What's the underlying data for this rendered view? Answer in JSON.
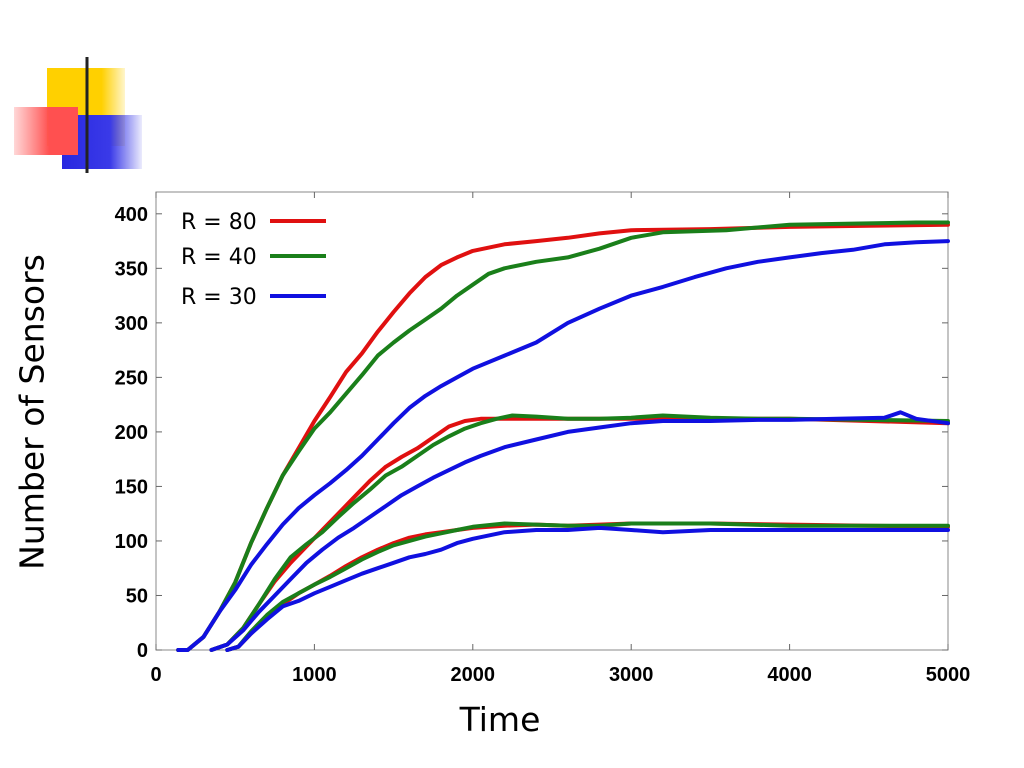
{
  "decoration": {
    "colors": {
      "yellow": "#FFD000",
      "red": "#FF6060",
      "blue": "#2828E0",
      "line": "#222222"
    }
  },
  "chart_data": {
    "type": "line",
    "title": "",
    "xlabel": "Time",
    "ylabel": "Number of Sensors",
    "xlim": [
      0,
      5000
    ],
    "ylim": [
      0,
      420
    ],
    "xticks": [
      0,
      1000,
      2000,
      3000,
      4000,
      5000
    ],
    "yticks": [
      0,
      50,
      100,
      150,
      200,
      250,
      300,
      350,
      400
    ],
    "grid": false,
    "legend": "top-left",
    "legend_entries": [
      {
        "label": "R = 80",
        "color": "#E01010"
      },
      {
        "label": "R = 40",
        "color": "#1A7F1A"
      },
      {
        "label": "R = 30",
        "color": "#1010E0"
      }
    ],
    "series": [
      {
        "name": "R = 80",
        "color": "#E01010",
        "x": [
          140,
          200,
          300,
          400,
          500,
          600,
          700,
          800,
          900,
          1000,
          1100,
          1200,
          1300,
          1400,
          1500,
          1600,
          1700,
          1800,
          1900,
          2000,
          2200,
          2400,
          2600,
          2800,
          3000,
          3500,
          4000,
          4500,
          5000
        ],
        "y": [
          0,
          0,
          12,
          35,
          62,
          98,
          130,
          160,
          185,
          210,
          232,
          255,
          272,
          292,
          310,
          327,
          342,
          353,
          360,
          366,
          372,
          375,
          378,
          382,
          385,
          386,
          388,
          389,
          390
        ]
      },
      {
        "name": "R = 40",
        "color": "#1A7F1A",
        "x": [
          140,
          200,
          300,
          400,
          500,
          600,
          700,
          800,
          900,
          1000,
          1100,
          1200,
          1300,
          1400,
          1500,
          1600,
          1700,
          1800,
          1900,
          2000,
          2100,
          2200,
          2400,
          2600,
          2800,
          3000,
          3200,
          3600,
          4000,
          4400,
          4800,
          5000
        ],
        "y": [
          0,
          0,
          12,
          35,
          62,
          98,
          130,
          160,
          182,
          203,
          218,
          235,
          252,
          270,
          282,
          293,
          303,
          313,
          325,
          335,
          345,
          350,
          356,
          360,
          368,
          378,
          383,
          385,
          390,
          391,
          392,
          392
        ]
      },
      {
        "name": "R = 30",
        "color": "#1010E0",
        "x": [
          140,
          200,
          300,
          400,
          500,
          600,
          700,
          800,
          900,
          1000,
          1100,
          1200,
          1300,
          1400,
          1500,
          1600,
          1700,
          1800,
          1900,
          2000,
          2200,
          2400,
          2600,
          2800,
          3000,
          3200,
          3400,
          3600,
          3800,
          4000,
          4200,
          4400,
          4600,
          4800,
          5000
        ],
        "y": [
          0,
          0,
          12,
          35,
          55,
          78,
          97,
          115,
          130,
          142,
          153,
          165,
          178,
          193,
          208,
          222,
          233,
          242,
          250,
          258,
          270,
          282,
          300,
          313,
          325,
          333,
          342,
          350,
          356,
          360,
          364,
          367,
          372,
          374,
          375
        ]
      },
      {
        "name": "R = 80",
        "color": "#E01010",
        "x": [
          350,
          450,
          550,
          650,
          750,
          850,
          950,
          1050,
          1150,
          1250,
          1350,
          1450,
          1550,
          1650,
          1750,
          1850,
          1950,
          2050,
          2200,
          2400,
          2600,
          2800,
          3000,
          3200,
          3500,
          3800,
          4000,
          4500,
          5000
        ],
        "y": [
          0,
          5,
          20,
          42,
          63,
          80,
          95,
          110,
          125,
          140,
          155,
          168,
          177,
          185,
          195,
          205,
          210,
          212,
          212,
          212,
          212,
          212,
          212,
          212,
          212,
          212,
          212,
          210,
          208
        ]
      },
      {
        "name": "R = 40",
        "color": "#1A7F1A",
        "x": [
          350,
          450,
          550,
          650,
          750,
          850,
          950,
          1050,
          1150,
          1250,
          1350,
          1450,
          1550,
          1650,
          1750,
          1850,
          1950,
          2050,
          2150,
          2250,
          2400,
          2600,
          2800,
          3000,
          3200,
          3500,
          3800,
          4000,
          4500,
          5000
        ],
        "y": [
          0,
          5,
          20,
          42,
          65,
          85,
          97,
          108,
          122,
          135,
          147,
          160,
          168,
          178,
          188,
          196,
          203,
          208,
          212,
          215,
          214,
          212,
          212,
          213,
          215,
          213,
          212,
          212,
          211,
          210
        ]
      },
      {
        "name": "R = 30",
        "color": "#1010E0",
        "x": [
          350,
          450,
          550,
          650,
          750,
          850,
          950,
          1050,
          1150,
          1250,
          1350,
          1450,
          1550,
          1650,
          1750,
          1850,
          1950,
          2050,
          2200,
          2400,
          2600,
          2800,
          3000,
          3200,
          3500,
          3800,
          4000,
          4300,
          4600,
          4700,
          4800,
          5000
        ],
        "y": [
          0,
          5,
          18,
          35,
          50,
          65,
          80,
          92,
          103,
          112,
          122,
          132,
          142,
          150,
          158,
          165,
          172,
          178,
          186,
          193,
          200,
          204,
          208,
          210,
          210,
          211,
          211,
          212,
          213,
          218,
          212,
          208
        ]
      },
      {
        "name": "R = 80",
        "color": "#E01010",
        "x": [
          450,
          520,
          600,
          700,
          800,
          900,
          1000,
          1100,
          1200,
          1300,
          1400,
          1500,
          1600,
          1700,
          1800,
          1900,
          2000,
          2200,
          2400,
          2600,
          2800,
          3000,
          3500,
          4000,
          4500,
          5000
        ],
        "y": [
          0,
          3,
          15,
          30,
          42,
          52,
          60,
          68,
          77,
          85,
          92,
          98,
          103,
          106,
          108,
          110,
          112,
          114,
          115,
          114,
          115,
          116,
          116,
          115,
          114,
          113
        ]
      },
      {
        "name": "R = 40",
        "color": "#1A7F1A",
        "x": [
          450,
          520,
          600,
          700,
          800,
          900,
          1000,
          1100,
          1200,
          1300,
          1400,
          1500,
          1600,
          1700,
          1800,
          1900,
          2000,
          2200,
          2400,
          2600,
          2800,
          3000,
          3500,
          4000,
          4500,
          5000
        ],
        "y": [
          0,
          3,
          17,
          32,
          44,
          52,
          60,
          67,
          75,
          83,
          90,
          96,
          100,
          104,
          107,
          110,
          113,
          116,
          115,
          114,
          114,
          116,
          116,
          114,
          114,
          114
        ]
      },
      {
        "name": "R = 30",
        "color": "#1010E0",
        "x": [
          450,
          520,
          600,
          700,
          800,
          900,
          1000,
          1100,
          1200,
          1300,
          1400,
          1500,
          1600,
          1700,
          1800,
          1900,
          2000,
          2200,
          2400,
          2600,
          2800,
          3000,
          3200,
          3500,
          4000,
          4500,
          5000
        ],
        "y": [
          0,
          3,
          15,
          28,
          40,
          45,
          52,
          58,
          64,
          70,
          75,
          80,
          85,
          88,
          92,
          98,
          102,
          108,
          110,
          110,
          112,
          110,
          108,
          110,
          110,
          110,
          110
        ]
      }
    ]
  }
}
